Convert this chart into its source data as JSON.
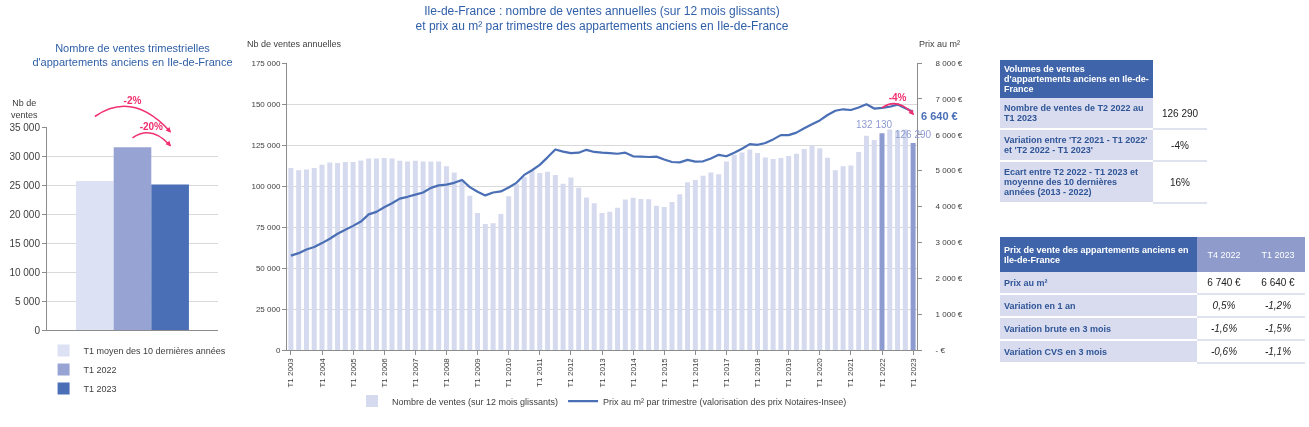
{
  "chart_data": [
    {
      "type": "bar",
      "title": "Nombre de ventes trimestrielles\nd'appartements anciens en Ile-de-France",
      "ylabel": "Nb de\nventes",
      "categories": [
        null
      ],
      "series": [
        {
          "name": "T1 moyen des 10 dernières années",
          "color": "#dce1f3",
          "values": [
            25700
          ]
        },
        {
          "name": "T1 2022",
          "color": "#97a4d3",
          "values": [
            31500
          ]
        },
        {
          "name": "T1 2023",
          "color": "#4a6fb6",
          "values": [
            25100
          ]
        }
      ],
      "ylim": [
        0,
        35000
      ],
      "yticks": [
        0,
        {
          "value": 5000,
          "label": "5 000"
        },
        {
          "value": 10000,
          "label": "10 000"
        },
        {
          "value": 15000,
          "label": "15 000"
        },
        {
          "value": 20000,
          "label": "20 000"
        },
        {
          "value": 25000,
          "label": "25 000"
        },
        {
          "value": 30000,
          "label": "30 000"
        },
        {
          "value": 35000,
          "label": "35 000"
        }
      ],
      "grid": "y",
      "legend": "bottom",
      "annotations": [
        "-2%",
        "-20%"
      ]
    },
    {
      "type": "bar",
      "title": "Ile-de-France : nombre de ventes annuelles (sur 12 mois glissants)\net prix au m² par trimestre des appartements anciens en Ile-de-France",
      "ylabel": "Nb de ventes annuelles",
      "y2label": "Prix au m²",
      "categories": [
        "T1 2003",
        null,
        null,
        null,
        "T1 2004",
        null,
        null,
        null,
        "T1 2005",
        null,
        null,
        null,
        "T1 2006",
        null,
        null,
        null,
        "T1 2007",
        null,
        null,
        null,
        "T1 2008",
        null,
        null,
        null,
        "T1 2009",
        null,
        null,
        null,
        "T1 2010",
        null,
        null,
        null,
        "T1 2011",
        null,
        null,
        null,
        "T1 2012",
        null,
        null,
        null,
        "T1 2013",
        null,
        null,
        null,
        "T1 2014",
        null,
        null,
        null,
        "T1 2015",
        null,
        null,
        null,
        "T1 2016",
        null,
        null,
        null,
        "T1 2017",
        null,
        null,
        null,
        "T1 2018",
        null,
        null,
        null,
        "T1 2019",
        null,
        null,
        null,
        "T1 2020",
        null,
        null,
        null,
        "T1 2021",
        null,
        null,
        null,
        "T1 2022",
        null,
        null,
        null,
        "T1 2023"
      ],
      "series": [
        {
          "name": "Nombre de ventes (sur 12 mois glissants)",
          "type": "bar",
          "colors": [
            "#d5daee",
            "#d5daee",
            "#d5daee",
            "#d5daee",
            "#d5daee",
            "#d5daee",
            "#d5daee",
            "#d5daee",
            "#d5daee",
            "#d5daee",
            "#d5daee",
            "#d5daee",
            "#d5daee",
            "#d5daee",
            "#d5daee",
            "#d5daee",
            "#d5daee",
            "#d5daee",
            "#d5daee",
            "#d5daee",
            "#d5daee",
            "#d5daee",
            "#d5daee",
            "#d5daee",
            "#d5daee",
            "#d5daee",
            "#d5daee",
            "#d5daee",
            "#d5daee",
            "#d5daee",
            "#d5daee",
            "#d5daee",
            "#d5daee",
            "#d5daee",
            "#d5daee",
            "#d5daee",
            "#d5daee",
            "#d5daee",
            "#d5daee",
            "#d5daee",
            "#d5daee",
            "#d5daee",
            "#d5daee",
            "#d5daee",
            "#d5daee",
            "#d5daee",
            "#d5daee",
            "#d5daee",
            "#d5daee",
            "#d5daee",
            "#d5daee",
            "#d5daee",
            "#d5daee",
            "#d5daee",
            "#d5daee",
            "#d5daee",
            "#d5daee",
            "#d5daee",
            "#d5daee",
            "#d5daee",
            "#d5daee",
            "#d5daee",
            "#d5daee",
            "#d5daee",
            "#d5daee",
            "#d5daee",
            "#d5daee",
            "#d5daee",
            "#d5daee",
            "#d5daee",
            "#d5daee",
            "#d5daee",
            "#d5daee",
            "#d5daee",
            "#d5daee",
            "#d5daee",
            "#8e9bd0",
            "#d5daee",
            "#d5daee",
            "#d5daee",
            "#8e9bd0"
          ],
          "values": [
            111000,
            109600,
            110000,
            111000,
            113000,
            114300,
            114000,
            114700,
            114700,
            115600,
            116800,
            116800,
            117000,
            116800,
            115400,
            114900,
            115400,
            115000,
            115000,
            114900,
            112000,
            108300,
            103800,
            94000,
            83500,
            76800,
            77300,
            83000,
            93800,
            101000,
            105400,
            109600,
            108000,
            108700,
            106700,
            101300,
            105200,
            99000,
            93000,
            89500,
            83500,
            84300,
            86800,
            91700,
            92800,
            92000,
            91900,
            88000,
            87200,
            90300,
            95000,
            102300,
            103600,
            106200,
            108300,
            107100,
            114900,
            119000,
            120500,
            122200,
            120100,
            117400,
            116400,
            117000,
            118300,
            119700,
            122600,
            124900,
            123000,
            117200,
            109600,
            112000,
            112500,
            120700,
            130700,
            128000,
            132130,
            134400,
            133800,
            134400,
            126290
          ],
          "value_labels": [
            null,
            null,
            null,
            null,
            null,
            null,
            null,
            null,
            null,
            null,
            null,
            null,
            null,
            null,
            null,
            null,
            null,
            null,
            null,
            null,
            null,
            null,
            null,
            null,
            null,
            null,
            null,
            null,
            null,
            null,
            null,
            null,
            null,
            null,
            null,
            null,
            null,
            null,
            null,
            null,
            null,
            null,
            null,
            null,
            null,
            null,
            null,
            null,
            null,
            null,
            null,
            null,
            null,
            null,
            null,
            null,
            null,
            null,
            null,
            null,
            null,
            null,
            null,
            null,
            null,
            null,
            null,
            null,
            null,
            null,
            null,
            null,
            null,
            null,
            null,
            null,
            "132 130",
            null,
            null,
            null,
            "126 290"
          ]
        },
        {
          "name": "Prix au m² par trimestre (valorisation des prix Notaires-Insee)",
          "type": "line",
          "axis": "y2",
          "color": "#4a6fb5",
          "values": [
            2630,
            2700,
            2800,
            2870,
            2980,
            3100,
            3240,
            3350,
            3460,
            3580,
            3780,
            3850,
            3980,
            4090,
            4220,
            4270,
            4330,
            4390,
            4520,
            4590,
            4610,
            4660,
            4740,
            4540,
            4410,
            4310,
            4390,
            4420,
            4530,
            4660,
            4880,
            5010,
            5160,
            5370,
            5590,
            5530,
            5490,
            5500,
            5580,
            5520,
            5500,
            5490,
            5470,
            5500,
            5400,
            5390,
            5380,
            5390,
            5310,
            5240,
            5230,
            5300,
            5250,
            5260,
            5340,
            5440,
            5400,
            5500,
            5610,
            5740,
            5720,
            5770,
            5870,
            5990,
            5990,
            6060,
            6180,
            6290,
            6400,
            6550,
            6670,
            6710,
            6690,
            6760,
            6850,
            6730,
            6750,
            6780,
            6840,
            6740,
            6640
          ],
          "value_labels": [
            null,
            null,
            null,
            null,
            null,
            null,
            null,
            null,
            null,
            null,
            null,
            null,
            null,
            null,
            null,
            null,
            null,
            null,
            null,
            null,
            null,
            null,
            null,
            null,
            null,
            null,
            null,
            null,
            null,
            null,
            null,
            null,
            null,
            null,
            null,
            null,
            null,
            null,
            null,
            null,
            null,
            null,
            null,
            null,
            null,
            null,
            null,
            null,
            null,
            null,
            null,
            null,
            null,
            null,
            null,
            null,
            null,
            null,
            null,
            null,
            null,
            null,
            null,
            null,
            null,
            null,
            null,
            null,
            null,
            null,
            null,
            null,
            null,
            null,
            null,
            null,
            null,
            null,
            null,
            null,
            "6 640 €"
          ]
        }
      ],
      "ylim": [
        0,
        175000
      ],
      "yticks": [
        0,
        {
          "value": 25000,
          "label": "25 000"
        },
        {
          "value": 50000,
          "label": "50 000"
        },
        {
          "value": 75000,
          "label": "75 000"
        },
        {
          "value": 100000,
          "label": "100 000"
        },
        {
          "value": 125000,
          "label": "125 000"
        },
        {
          "value": 150000,
          "label": "150 000"
        },
        {
          "value": 175000,
          "label": "175 000"
        }
      ],
      "y2lim": [
        0,
        8000
      ],
      "y2ticks": [
        {
          "value": 0,
          "label": "- €"
        },
        {
          "value": 1000,
          "label": "1 000 €"
        },
        {
          "value": 2000,
          "label": "2 000 €"
        },
        {
          "value": 3000,
          "label": "3 000 €"
        },
        {
          "value": 4000,
          "label": "4 000 €"
        },
        {
          "value": 5000,
          "label": "5 000 €"
        },
        {
          "value": 6000,
          "label": "6 000 €"
        },
        {
          "value": 7000,
          "label": "7 000 €"
        },
        {
          "value": 8000,
          "label": "8 000 €"
        }
      ],
      "grid": "y",
      "legend": "bottom",
      "marker": "none",
      "line_style": "solid",
      "annotations": [
        "-4%"
      ]
    },
    {
      "type": "other",
      "title": "Volumes de ventes d'appartements anciens en Ile-de-France",
      "categories": [
        "Nombre de ventes de T2 2022 au T1 2023",
        "Variation entre 'T2 2021 - T1 2022' et 'T2 2022 - T1 2023'",
        "Ecart entre T2 2022 - T1 2023 et moyenne des 10 dernières années (2013 - 2022)"
      ],
      "value_labels": [
        "126 290",
        "-4%",
        "16%"
      ]
    },
    {
      "type": "other",
      "title": "Prix de vente des appartements anciens en Ile-de-France",
      "categories": [
        "Prix au m²",
        "Variation en 1 an",
        "Variation brute en 3 mois",
        "Variation CVS en 3 mois"
      ],
      "series": [
        {
          "name": "T4 2022",
          "values": [
            6740,
            0.5,
            -1.6,
            -0.6
          ],
          "value_labels": [
            "6 740 €",
            "0,5%",
            "-1,6%",
            "-0,6%"
          ]
        },
        {
          "name": "T1 2023",
          "values": [
            6640,
            -1.2,
            -1.5,
            -1.1
          ],
          "value_labels": [
            "6 640 €",
            "-1,2%",
            "-1,5%",
            "-1,1%"
          ]
        }
      ]
    }
  ]
}
